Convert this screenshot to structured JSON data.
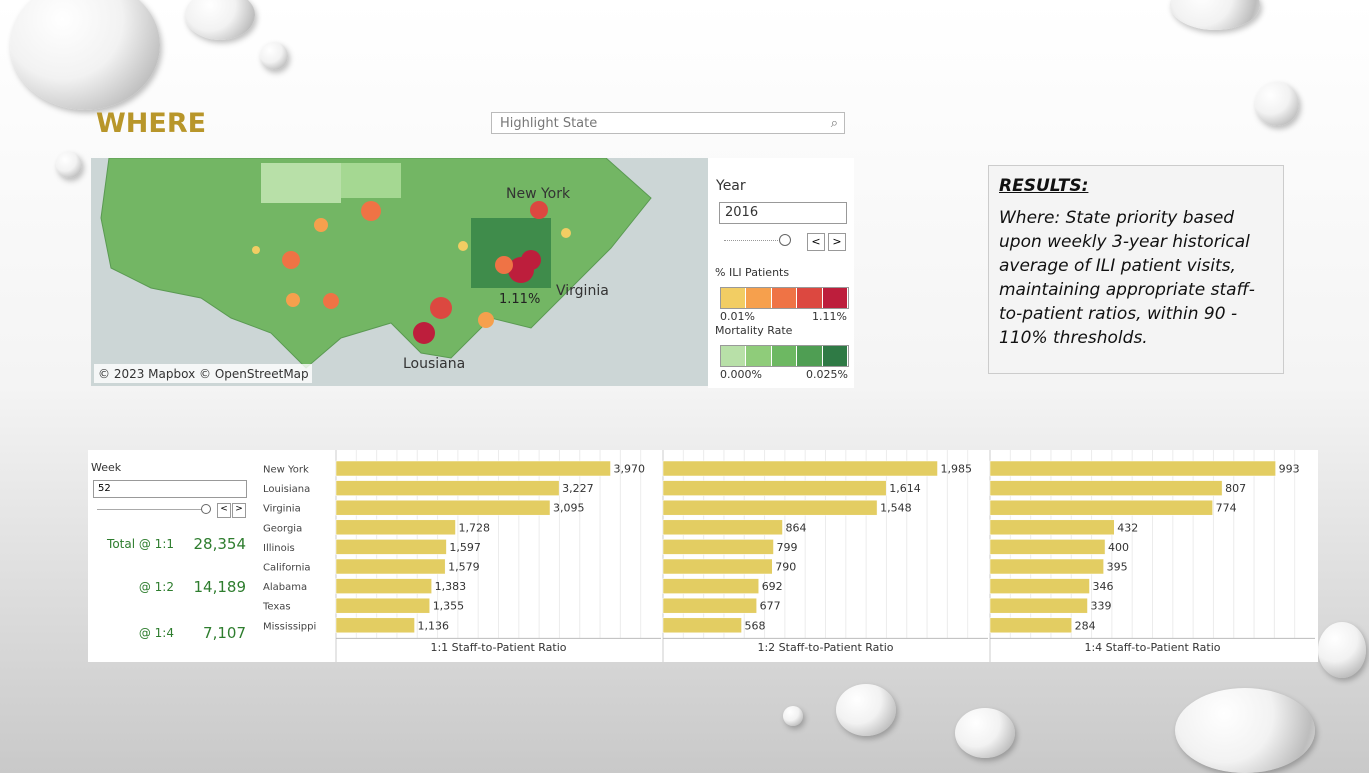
{
  "header": {
    "title": "WHERE",
    "search_placeholder": "Highlight State"
  },
  "map": {
    "labels": [
      "New York",
      "Virginia",
      "Lousiana",
      "1.11%"
    ],
    "attribution": "© 2023 Mapbox © OpenStreetMap"
  },
  "year_filter": {
    "label": "Year",
    "value": "2016"
  },
  "legend_ili": {
    "title": "% ILI Patients",
    "min": "0.01%",
    "max": "1.11%",
    "colors": [
      "#f2cd63",
      "#f6a04d",
      "#ef7345",
      "#dc4840",
      "#bd1e3c"
    ]
  },
  "legend_mortality": {
    "title": "Mortality Rate",
    "min": "0.000%",
    "max": "0.025%",
    "colors": [
      "#b8e0a8",
      "#8fcc7a",
      "#6db862",
      "#4f9e53",
      "#2f7a45"
    ]
  },
  "results": {
    "title": "RESULTS:",
    "body": "Where:  State priority based upon weekly 3-year historical average of ILI patient visits, maintaining appropriate staff-to-patient ratios, within 90 - 110% thresholds."
  },
  "week_filter": {
    "label": "Week",
    "value": "52"
  },
  "totals": [
    {
      "label": "Total @ 1:1",
      "value": "28,354"
    },
    {
      "label": "@ 1:2",
      "value": "14,189"
    },
    {
      "label": "@ 1:4",
      "value": "7,107"
    }
  ],
  "chart_data": [
    {
      "type": "bar",
      "orientation": "horizontal",
      "x_label": "1:1  Staff-to-Patient Ratio",
      "categories": [
        "New York",
        "Louisiana",
        "Virginia",
        "Georgia",
        "Illinois",
        "California",
        "Alabama",
        "Texas",
        "Mississippi"
      ],
      "values": [
        3970,
        3227,
        3095,
        1728,
        1597,
        1579,
        1383,
        1355,
        1136
      ],
      "value_labels": [
        "3,970",
        "3,227",
        "3,095",
        "1,728",
        "1,597",
        "1,579",
        "1,383",
        "1,355",
        "1,136"
      ],
      "color": "#e3cd62",
      "xlim": [
        0,
        4700
      ],
      "grid": true
    },
    {
      "type": "bar",
      "orientation": "horizontal",
      "x_label": "1:2  Staff-to-Patient Ratio",
      "categories": [
        "New York",
        "Louisiana",
        "Virginia",
        "Georgia",
        "Illinois",
        "California",
        "Alabama",
        "Texas",
        "Mississippi"
      ],
      "values": [
        1985,
        1614,
        1548,
        864,
        799,
        790,
        692,
        677,
        568
      ],
      "value_labels": [
        "1,985",
        "1,614",
        "1,548",
        "864",
        "799",
        "790",
        "692",
        "677",
        "568"
      ],
      "color": "#e3cd62",
      "xlim": [
        0,
        2350
      ],
      "grid": true
    },
    {
      "type": "bar",
      "orientation": "horizontal",
      "x_label": "1:4  Staff-to-Patient Ratio",
      "categories": [
        "New York",
        "Louisiana",
        "Virginia",
        "Georgia",
        "Illinois",
        "California",
        "Alabama",
        "Texas",
        "Mississippi"
      ],
      "values": [
        993,
        807,
        774,
        432,
        400,
        395,
        346,
        339,
        284
      ],
      "value_labels": [
        "993",
        "807",
        "774",
        "432",
        "400",
        "395",
        "346",
        "339",
        "284"
      ],
      "color": "#e3cd62",
      "xlim": [
        0,
        1130
      ],
      "grid": true
    }
  ]
}
